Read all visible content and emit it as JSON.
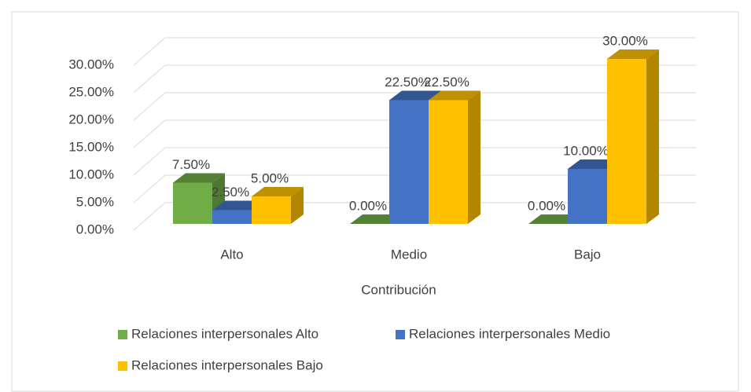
{
  "chart_data": {
    "type": "bar3d",
    "x_label": "Contribución",
    "categories": [
      "Alto",
      "Medio",
      "Bajo"
    ],
    "series": [
      {
        "name": "Relaciones interpersonales Alto",
        "color": "#70ad47",
        "values": [
          7.5,
          0,
          0
        ],
        "value_labels": [
          "7.50%",
          "0.00%",
          "0.00%"
        ]
      },
      {
        "name": "Relaciones interpersonales Medio",
        "color": "#4472c4",
        "values": [
          2.5,
          22.5,
          10
        ],
        "value_labels": [
          "2.50%",
          "22.50%",
          "10.00%"
        ]
      },
      {
        "name": "Relaciones interpersonales Bajo",
        "color": "#ffc000",
        "values": [
          5,
          22.5,
          30
        ],
        "value_labels": [
          "5.00%",
          "22.50%",
          "30.00%"
        ]
      }
    ],
    "ylim": [
      0,
      30
    ],
    "yticks": [
      {
        "value": 0,
        "label": "0.00%"
      },
      {
        "value": 5,
        "label": "5.00%"
      },
      {
        "value": 10,
        "label": "10.00%"
      },
      {
        "value": 15,
        "label": "15.00%"
      },
      {
        "value": 20,
        "label": "20.00%"
      },
      {
        "value": 25,
        "label": "25.00%"
      },
      {
        "value": 30,
        "label": "30.00%"
      }
    ],
    "grid": true
  }
}
